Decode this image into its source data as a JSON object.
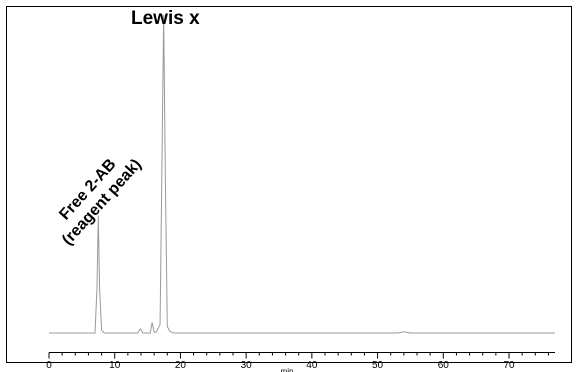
{
  "chart_data": {
    "type": "line",
    "title": "",
    "xlabel": "min",
    "ylabel": "",
    "xlim": [
      0,
      77
    ],
    "ylim": [
      0,
      100
    ],
    "xticks": [
      0,
      10,
      20,
      30,
      40,
      50,
      60,
      70
    ],
    "grid": false,
    "series": [
      {
        "x": [
          0,
          7.0,
          7.3,
          7.5,
          7.7,
          8.0,
          8.4,
          13.5,
          13.9,
          14.3,
          15.4,
          15.7,
          16.0,
          16.3,
          16.9,
          17.2,
          17.45,
          17.7,
          18.0,
          18.4,
          19.0,
          50,
          53,
          54,
          55,
          60,
          77
        ],
        "y": [
          0,
          0,
          14,
          37,
          14,
          1,
          0,
          0,
          1.3,
          0,
          0,
          3.3,
          0.3,
          0.2,
          2.6,
          55,
          100,
          50,
          2,
          0.5,
          0,
          0,
          0,
          0.4,
          0,
          0,
          0
        ],
        "color": "#9a9a9a"
      }
    ],
    "annotations": [
      {
        "text": "Lewis x"
      },
      {
        "lines": [
          "Free 2-AB",
          "(reagent peak)"
        ]
      }
    ]
  }
}
